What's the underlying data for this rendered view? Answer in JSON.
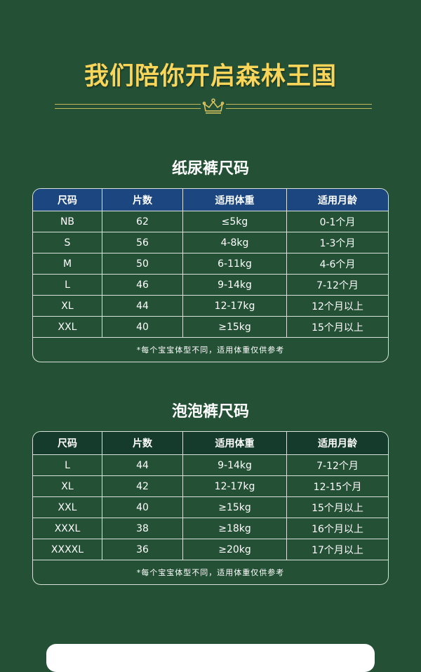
{
  "header": {
    "title": "我们陪你开启森林王国",
    "divider_icon": "crown-icon"
  },
  "colors": {
    "background": "#245136",
    "title": "#f9d65a",
    "table1_header": "#1b4680",
    "table2_header": "#143b2c"
  },
  "tables": [
    {
      "title": "纸尿裤尺码",
      "columns": [
        "尺码",
        "片数",
        "适用体重",
        "适用月龄"
      ],
      "rows": [
        [
          "NB",
          "62",
          "≤5kg",
          "0-1个月"
        ],
        [
          "S",
          "56",
          "4-8kg",
          "1-3个月"
        ],
        [
          "M",
          "50",
          "6-11kg",
          "4-6个月"
        ],
        [
          "L",
          "46",
          "9-14kg",
          "7-12个月"
        ],
        [
          "XL",
          "44",
          "12-17kg",
          "12个月以上"
        ],
        [
          "XXL",
          "40",
          "≥15kg",
          "15个月以上"
        ]
      ],
      "note": "*每个宝宝体型不同，适用体重仅供参考"
    },
    {
      "title": "泡泡裤尺码",
      "columns": [
        "尺码",
        "片数",
        "适用体重",
        "适用月龄"
      ],
      "rows": [
        [
          "L",
          "44",
          "9-14kg",
          "7-12个月"
        ],
        [
          "XL",
          "42",
          "12-17kg",
          "12-15个月"
        ],
        [
          "XXL",
          "40",
          "≥15kg",
          "15个月以上"
        ],
        [
          "XXXL",
          "38",
          "≥18kg",
          "16个月以上"
        ],
        [
          "XXXXL",
          "36",
          "≥20kg",
          "17个月以上"
        ]
      ],
      "note": "*每个宝宝体型不同，适用体重仅供参考"
    }
  ]
}
